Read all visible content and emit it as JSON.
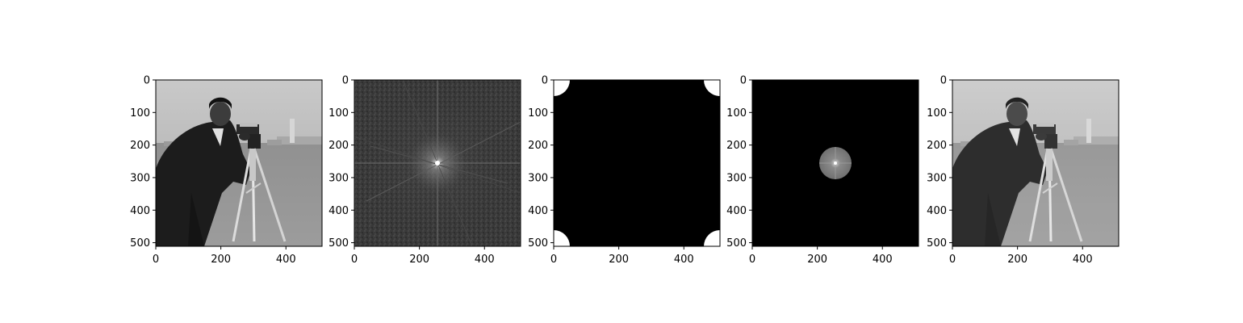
{
  "chart_data": [
    {
      "type": "image",
      "panel": 1,
      "content": "grayscale photograph: man with camera on tripod in a field",
      "xlim": [
        0,
        511
      ],
      "ylim": [
        511,
        0
      ],
      "xticks": [
        0,
        200,
        400
      ],
      "yticks": [
        0,
        100,
        200,
        300,
        400,
        500
      ]
    },
    {
      "type": "image",
      "panel": 2,
      "content": "fft magnitude spectrum, bright center at (256, 256)",
      "xlim": [
        0,
        511
      ],
      "ylim": [
        511,
        0
      ],
      "xticks": [
        0,
        200,
        400
      ],
      "yticks": [
        0,
        100,
        200,
        300,
        400,
        500
      ]
    },
    {
      "type": "image",
      "panel": 3,
      "content": "black mask with white quarter-circles in the four corners",
      "corner_radius": 50,
      "xlim": [
        0,
        511
      ],
      "ylim": [
        511,
        0
      ],
      "xticks": [
        0,
        200,
        400
      ],
      "yticks": [
        0,
        100,
        200,
        300,
        400,
        500
      ]
    },
    {
      "type": "image",
      "panel": 4,
      "content": "black image with a gray disk of spectrum centered at (256, 256)",
      "disk_center": [
        256,
        256
      ],
      "disk_radius": 50,
      "xlim": [
        0,
        511
      ],
      "ylim": [
        511,
        0
      ],
      "xticks": [
        0,
        200,
        400
      ],
      "yticks": [
        0,
        100,
        200,
        300,
        400,
        500
      ]
    },
    {
      "type": "image",
      "panel": 5,
      "content": "reconstructed, slightly blurred grayscale photograph of the man with camera",
      "xlim": [
        0,
        511
      ],
      "ylim": [
        511,
        0
      ],
      "xticks": [
        0,
        200,
        400
      ],
      "yticks": [
        0,
        100,
        200,
        300,
        400,
        500
      ]
    }
  ],
  "colors": {
    "background": "#ffffff",
    "axis": "#000000",
    "mask_white": "#ffffff",
    "mask_black": "#000000",
    "disk_gray": "#7a7a7a"
  }
}
